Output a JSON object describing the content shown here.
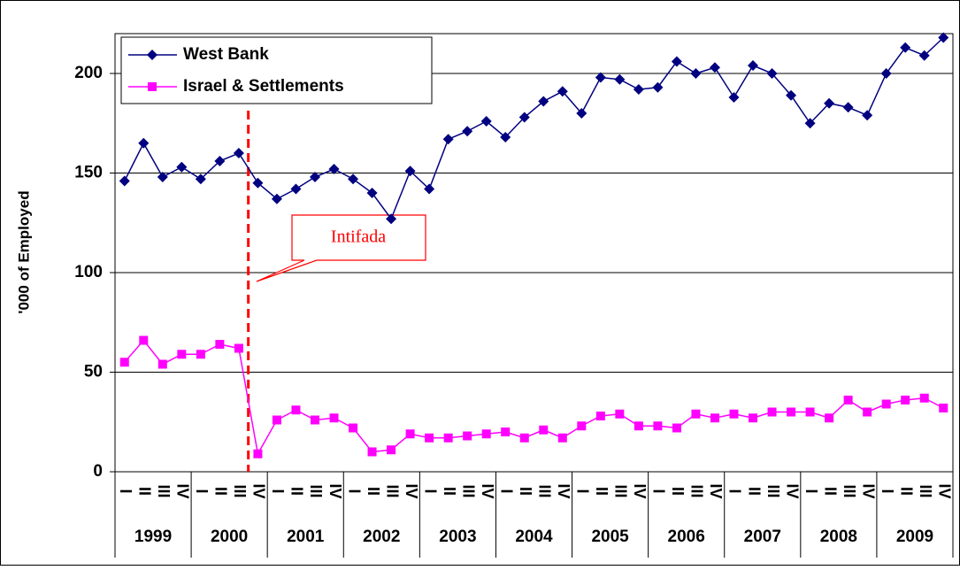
{
  "chart_data": {
    "type": "line",
    "y_label": "'000 of Employed",
    "categories": [
      "I",
      "II",
      "III",
      "IV",
      "I",
      "II",
      "III",
      "IV",
      "I",
      "II",
      "III",
      "IV",
      "I",
      "II",
      "III",
      "IV",
      "I",
      "II",
      "III",
      "IV",
      "I",
      "II",
      "III",
      "IV",
      "I",
      "II",
      "III",
      "IV",
      "I",
      "II",
      "III",
      "IV",
      "I",
      "II",
      "III",
      "IV",
      "I",
      "II",
      "III",
      "IV",
      "I",
      "II",
      "III",
      "IV"
    ],
    "years": [
      "1999",
      "2000",
      "2001",
      "2002",
      "2003",
      "2004",
      "2005",
      "2006",
      "2007",
      "2008",
      "2009"
    ],
    "series": [
      {
        "name": "West Bank",
        "color": "#000080",
        "marker": "diamond",
        "values": [
          146,
          165,
          148,
          153,
          147,
          156,
          160,
          145,
          137,
          142,
          148,
          152,
          147,
          140,
          127,
          151,
          142,
          167,
          171,
          176,
          168,
          178,
          186,
          191,
          180,
          198,
          197,
          192,
          193,
          206,
          200,
          203,
          188,
          204,
          200,
          189,
          175,
          185,
          183,
          179,
          200,
          213,
          209,
          218
        ]
      },
      {
        "name": "Israel & Settlements",
        "color": "#ff00ff",
        "marker": "square",
        "values": [
          55,
          66,
          54,
          59,
          59,
          64,
          62,
          9,
          26,
          31,
          26,
          27,
          22,
          10,
          11,
          19,
          17,
          17,
          18,
          19,
          20,
          17,
          21,
          17,
          23,
          28,
          29,
          23,
          23,
          22,
          29,
          27,
          29,
          27,
          30,
          30,
          30,
          27,
          36,
          30,
          34,
          36,
          37,
          32
        ]
      }
    ],
    "ylim": [
      0,
      220
    ],
    "yticks": [
      0,
      50,
      100,
      150,
      200
    ],
    "grid": true,
    "legend": "top-left",
    "annotation": {
      "text": "Intifada",
      "color": "#ff0000"
    }
  }
}
